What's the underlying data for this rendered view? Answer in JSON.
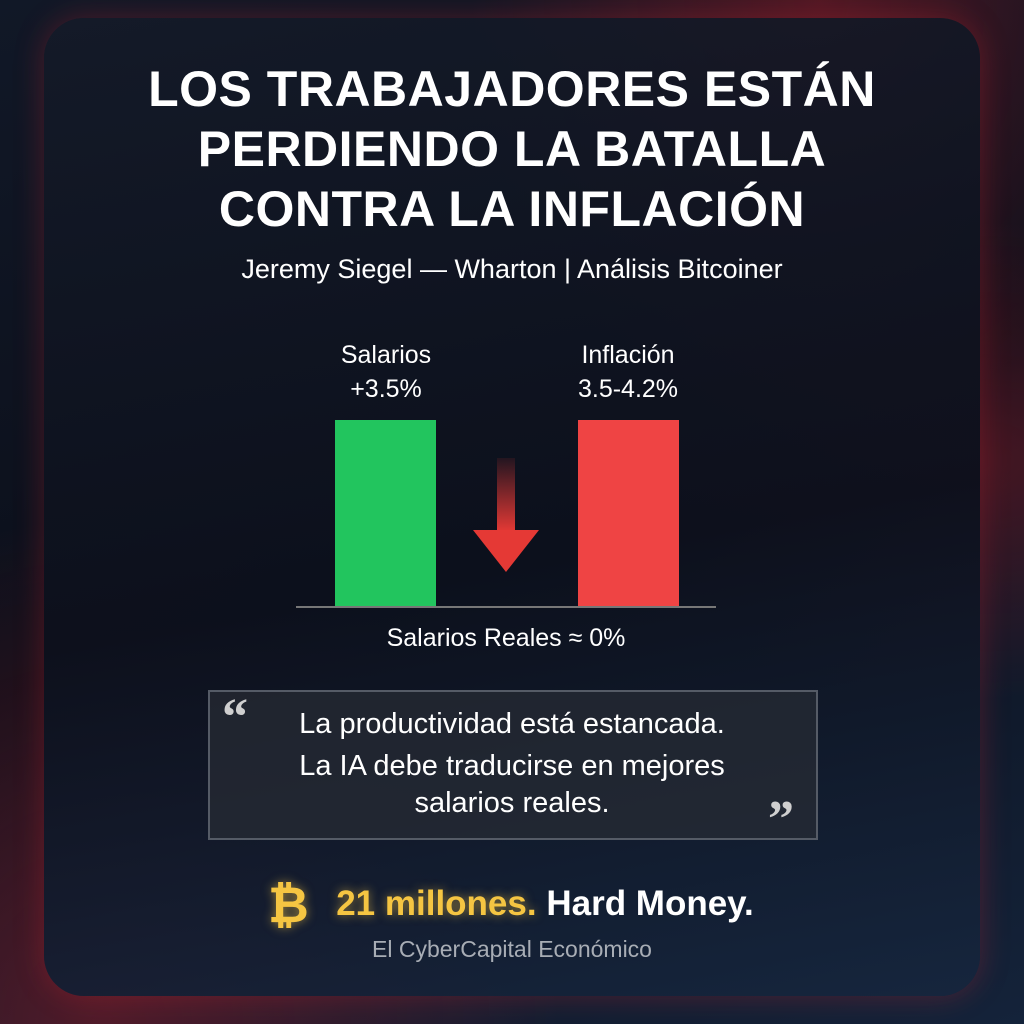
{
  "header": {
    "title": [
      "LOS TRABAJADORES ESTÁN",
      "PERDIENDO LA BATALLA",
      "CONTRA LA INFLACIÓN"
    ],
    "subtitle": "Jeremy Siegel — Wharton | Análisis Bitcoiner"
  },
  "graphic": {
    "bars": [
      {
        "label": "Salarios",
        "value_label": "+3.5%"
      },
      {
        "label": "Inflación",
        "value_label": "3.5-4.2%"
      }
    ],
    "caption": "Salarios Reales ≈ 0%"
  },
  "quote": {
    "lines": [
      "La productividad está estancada.",
      "La IA debe traducirse en mejores",
      "salarios reales."
    ]
  },
  "footer": {
    "tagline_gold": "21 millones.",
    "tagline_white": "Hard Money.",
    "brand": "El CyberCapital Económico"
  }
}
